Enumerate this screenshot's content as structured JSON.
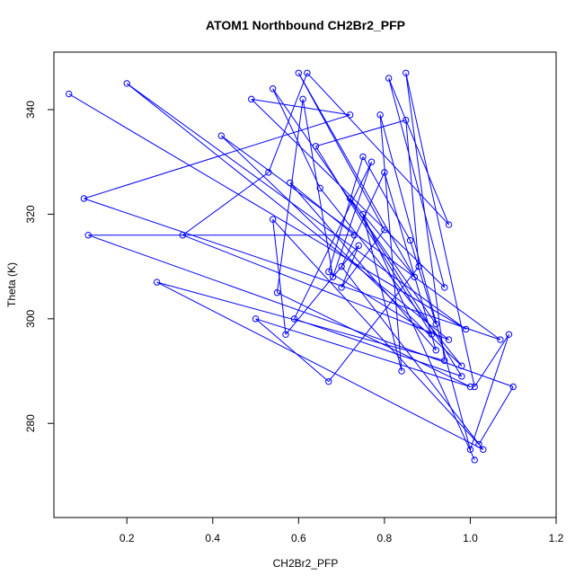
{
  "chart_data": {
    "type": "line",
    "title": "ATOM1 Northbound CH2Br2_PFP",
    "xlabel": "CH2Br2_PFP",
    "ylabel": "Theta (K)",
    "xlim": [
      0.03,
      1.2
    ],
    "ylim": [
      262,
      351
    ],
    "x_ticks": [
      0.2,
      0.4,
      0.6,
      0.8,
      1.0,
      1.2
    ],
    "x_tick_labels": [
      "0.2",
      "0.4",
      "0.6",
      "0.8",
      "1.0",
      "1.2"
    ],
    "y_ticks": [
      280,
      300,
      320,
      340
    ],
    "y_tick_labels": [
      "280",
      "300",
      "320",
      "340"
    ],
    "grid": false,
    "series": [
      {
        "color": "#0000ff",
        "marker": "open-circle",
        "x": [
          0.065,
          0.99,
          0.2,
          0.95,
          0.33,
          0.53,
          0.62,
          0.95,
          0.81,
          0.94,
          0.49,
          0.72,
          0.1,
          1.07,
          0.42,
          0.98,
          0.65,
          0.54,
          0.92,
          0.86,
          0.75,
          0.67,
          0.91,
          0.64,
          0.85,
          0.88,
          0.67,
          0.5,
          1.0,
          0.55,
          0.61,
          0.68,
          0.77,
          0.59,
          0.98,
          0.72,
          0.87,
          0.6,
          0.8,
          0.7,
          0.74,
          0.57,
          0.54,
          1.02,
          1.1,
          0.11,
          0.73,
          0.58,
          0.92,
          0.8,
          0.7,
          1.03,
          0.27,
          0.94,
          0.85,
          1.01,
          1.09,
          1.0,
          0.79,
          0.84,
          0.75,
          1.01
        ],
        "y": [
          343,
          298,
          345,
          296,
          316,
          328,
          347,
          318,
          346,
          306,
          342,
          339,
          323,
          296,
          335,
          291,
          325,
          344,
          299,
          315,
          331,
          309,
          297,
          333,
          338,
          310,
          288,
          300,
          287,
          305,
          342,
          308,
          330,
          300,
          289,
          323,
          308,
          347,
          317,
          306,
          314,
          297,
          319,
          276,
          287,
          316,
          316,
          326,
          294,
          328,
          310,
          275,
          307,
          292,
          347,
          287,
          297,
          275,
          339,
          290,
          320,
          273
        ]
      }
    ]
  }
}
